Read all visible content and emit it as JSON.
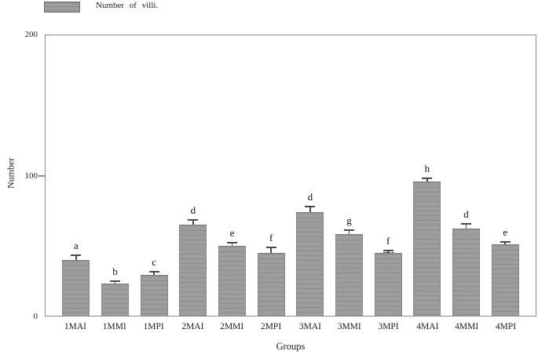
{
  "legend": {
    "label": "Number of villi."
  },
  "axes": {
    "y_label": "Number",
    "x_label": "Groups",
    "y_ticks": [
      "0",
      "100",
      "200"
    ]
  },
  "colors": {
    "bar_fill": "#9e9e9e",
    "axis_line": "#8c8c8c",
    "error_bar": "#4a4a4a"
  },
  "chart_data": {
    "type": "bar",
    "title": "",
    "xlabel": "Groups",
    "ylabel": "Number",
    "ylim": [
      0,
      200
    ],
    "grid": false,
    "legend_position": "top-left",
    "legend_entries": [
      "Number of villi."
    ],
    "categories": [
      "1MAI",
      "1MMI",
      "1MPI",
      "2MAI",
      "2MMI",
      "2MPI",
      "3MAI",
      "3MMI",
      "3MPI",
      "4MAI",
      "4MMI",
      "4MPI"
    ],
    "series": [
      {
        "name": "Number of villi.",
        "values": [
          40,
          23,
          29,
          65,
          50,
          45,
          74,
          58,
          45,
          96,
          62,
          51
        ],
        "errors": [
          2.5,
          1,
          2,
          3,
          1.5,
          3,
          3.5,
          2.5,
          1,
          1.5,
          3,
          1
        ],
        "sig_letters": [
          "a",
          "b",
          "c",
          "d",
          "e",
          "f",
          "d",
          "g",
          "f",
          "h",
          "d",
          "e"
        ]
      }
    ]
  }
}
